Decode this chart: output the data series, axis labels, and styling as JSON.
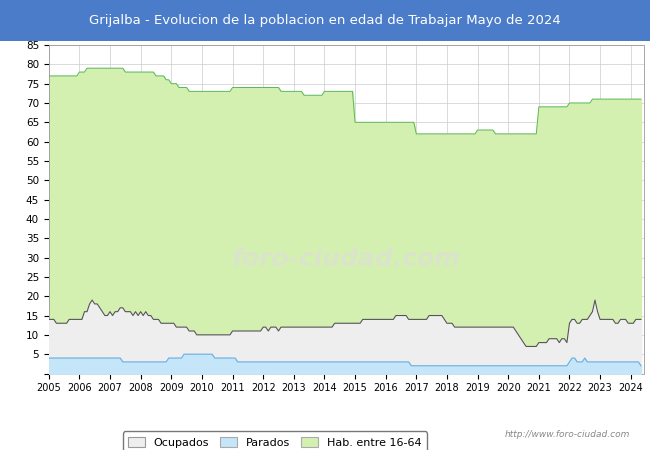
{
  "title": "Grijalba - Evolucion de la poblacion en edad de Trabajar Mayo de 2024",
  "title_bg_color": "#4a7cc9",
  "title_text_color": "white",
  "ylim": [
    0,
    85
  ],
  "yticks": [
    0,
    5,
    10,
    15,
    20,
    25,
    30,
    35,
    40,
    45,
    50,
    55,
    60,
    65,
    70,
    75,
    80,
    85
  ],
  "grid_color": "#cccccc",
  "plot_bg_color": "#ffffff",
  "watermark": "http://www.foro-ciudad.com",
  "legend_labels": [
    "Ocupados",
    "Parados",
    "Hab. entre 16-64"
  ],
  "hab_color_fill": "#d4f0b0",
  "hab_color_line": "#5cb85c",
  "ocup_color_fill": "#eeeeee",
  "ocup_color_line": "#555555",
  "parad_color_fill": "#c5e5f8",
  "parad_color_line": "#6aade4",
  "hab16_64_months": [
    [
      77,
      77,
      77,
      77,
      77,
      77,
      77,
      77,
      77,
      77,
      77,
      77
    ],
    [
      78,
      78,
      78,
      79,
      79,
      79,
      79,
      79,
      79,
      79,
      79,
      79
    ],
    [
      79,
      79,
      79,
      79,
      79,
      79,
      78,
      78,
      78,
      78,
      78,
      78
    ],
    [
      78,
      78,
      78,
      78,
      78,
      78,
      77,
      77,
      77,
      77,
      76,
      76
    ],
    [
      75,
      75,
      75,
      74,
      74,
      74,
      74,
      73,
      73,
      73,
      73,
      73
    ],
    [
      73,
      73,
      73,
      73,
      73,
      73,
      73,
      73,
      73,
      73,
      73,
      73
    ],
    [
      74,
      74,
      74,
      74,
      74,
      74,
      74,
      74,
      74,
      74,
      74,
      74
    ],
    [
      74,
      74,
      74,
      74,
      74,
      74,
      74,
      73,
      73,
      73,
      73,
      73
    ],
    [
      73,
      73,
      73,
      73,
      72,
      72,
      72,
      72,
      72,
      72,
      72,
      72
    ],
    [
      73,
      73,
      73,
      73,
      73,
      73,
      73,
      73,
      73,
      73,
      73,
      73
    ],
    [
      65,
      65,
      65,
      65,
      65,
      65,
      65,
      65,
      65,
      65,
      65,
      65
    ],
    [
      65,
      65,
      65,
      65,
      65,
      65,
      65,
      65,
      65,
      65,
      65,
      65
    ],
    [
      62,
      62,
      62,
      62,
      62,
      62,
      62,
      62,
      62,
      62,
      62,
      62
    ],
    [
      62,
      62,
      62,
      62,
      62,
      62,
      62,
      62,
      62,
      62,
      62,
      62
    ],
    [
      63,
      63,
      63,
      63,
      63,
      63,
      63,
      62,
      62,
      62,
      62,
      62
    ],
    [
      62,
      62,
      62,
      62,
      62,
      62,
      62,
      62,
      62,
      62,
      62,
      62
    ],
    [
      69,
      69,
      69,
      69,
      69,
      69,
      69,
      69,
      69,
      69,
      69,
      69
    ],
    [
      70,
      70,
      70,
      70,
      70,
      70,
      70,
      70,
      70,
      71,
      71,
      71
    ],
    [
      71,
      71,
      71,
      71,
      71,
      71,
      71,
      71,
      71,
      71,
      71,
      71
    ],
    [
      71,
      71,
      71,
      71,
      71
    ]
  ],
  "ocup_months": [
    [
      14,
      14,
      14,
      13,
      13,
      13,
      13,
      13,
      14,
      14,
      14,
      14
    ],
    [
      14,
      14,
      16,
      16,
      18,
      19,
      18,
      18,
      17,
      16,
      15,
      15
    ],
    [
      16,
      15,
      16,
      16,
      17,
      17,
      16,
      16,
      16,
      15,
      16,
      15
    ],
    [
      16,
      15,
      16,
      15,
      15,
      14,
      14,
      14,
      13,
      13,
      13,
      13
    ],
    [
      13,
      13,
      12,
      12,
      12,
      12,
      12,
      11,
      11,
      11,
      10,
      10
    ],
    [
      10,
      10,
      10,
      10,
      10,
      10,
      10,
      10,
      10,
      10,
      10,
      10
    ],
    [
      11,
      11,
      11,
      11,
      11,
      11,
      11,
      11,
      11,
      11,
      11,
      11
    ],
    [
      12,
      12,
      11,
      12,
      12,
      12,
      11,
      12,
      12,
      12,
      12,
      12
    ],
    [
      12,
      12,
      12,
      12,
      12,
      12,
      12,
      12,
      12,
      12,
      12,
      12
    ],
    [
      12,
      12,
      12,
      12,
      13,
      13,
      13,
      13,
      13,
      13,
      13,
      13
    ],
    [
      13,
      13,
      13,
      14,
      14,
      14,
      14,
      14,
      14,
      14,
      14,
      14
    ],
    [
      14,
      14,
      14,
      14,
      15,
      15,
      15,
      15,
      15,
      14,
      14,
      14
    ],
    [
      14,
      14,
      14,
      14,
      14,
      15,
      15,
      15,
      15,
      15,
      15,
      14
    ],
    [
      13,
      13,
      13,
      12,
      12,
      12,
      12,
      12,
      12,
      12,
      12,
      12
    ],
    [
      12,
      12,
      12,
      12,
      12,
      12,
      12,
      12,
      12,
      12,
      12,
      12
    ],
    [
      12,
      12,
      12,
      11,
      10,
      9,
      8,
      7,
      7,
      7,
      7,
      7
    ],
    [
      8,
      8,
      8,
      8,
      9,
      9,
      9,
      9,
      8,
      9,
      9,
      8
    ],
    [
      13,
      14,
      14,
      13,
      13,
      14,
      14,
      14,
      15,
      16,
      19,
      16
    ],
    [
      14,
      14,
      14,
      14,
      14,
      14,
      13,
      13,
      14,
      14,
      14,
      13
    ],
    [
      13,
      13,
      14,
      14,
      14
    ]
  ],
  "parad_months": [
    [
      4,
      4,
      4,
      4,
      4,
      4,
      4,
      4,
      4,
      4,
      4,
      4
    ],
    [
      4,
      4,
      4,
      4,
      4,
      4,
      4,
      4,
      4,
      4,
      4,
      4
    ],
    [
      4,
      4,
      4,
      4,
      4,
      3,
      3,
      3,
      3,
      3,
      3,
      3
    ],
    [
      3,
      3,
      3,
      3,
      3,
      3,
      3,
      3,
      3,
      3,
      3,
      4
    ],
    [
      4,
      4,
      4,
      4,
      4,
      5,
      5,
      5,
      5,
      5,
      5,
      5
    ],
    [
      5,
      5,
      5,
      5,
      5,
      4,
      4,
      4,
      4,
      4,
      4,
      4
    ],
    [
      4,
      4,
      3,
      3,
      3,
      3,
      3,
      3,
      3,
      3,
      3,
      3
    ],
    [
      3,
      3,
      3,
      3,
      3,
      3,
      3,
      3,
      3,
      3,
      3,
      3
    ],
    [
      3,
      3,
      3,
      3,
      3,
      3,
      3,
      3,
      3,
      3,
      3,
      3
    ],
    [
      3,
      3,
      3,
      3,
      3,
      3,
      3,
      3,
      3,
      3,
      3,
      3
    ],
    [
      3,
      3,
      3,
      3,
      3,
      3,
      3,
      3,
      3,
      3,
      3,
      3
    ],
    [
      3,
      3,
      3,
      3,
      3,
      3,
      3,
      3,
      3,
      3,
      2,
      2
    ],
    [
      2,
      2,
      2,
      2,
      2,
      2,
      2,
      2,
      2,
      2,
      2,
      2
    ],
    [
      2,
      2,
      2,
      2,
      2,
      2,
      2,
      2,
      2,
      2,
      2,
      2
    ],
    [
      2,
      2,
      2,
      2,
      2,
      2,
      2,
      2,
      2,
      2,
      2,
      2
    ],
    [
      2,
      2,
      2,
      2,
      2,
      2,
      2,
      2,
      2,
      2,
      2,
      2
    ],
    [
      2,
      2,
      2,
      2,
      2,
      2,
      2,
      2,
      2,
      2,
      2,
      2
    ],
    [
      3,
      4,
      4,
      3,
      3,
      3,
      4,
      3,
      3,
      3,
      3,
      3
    ],
    [
      3,
      3,
      3,
      3,
      3,
      3,
      3,
      3,
      3,
      3,
      3,
      3
    ],
    [
      3,
      3,
      3,
      3,
      2
    ]
  ]
}
